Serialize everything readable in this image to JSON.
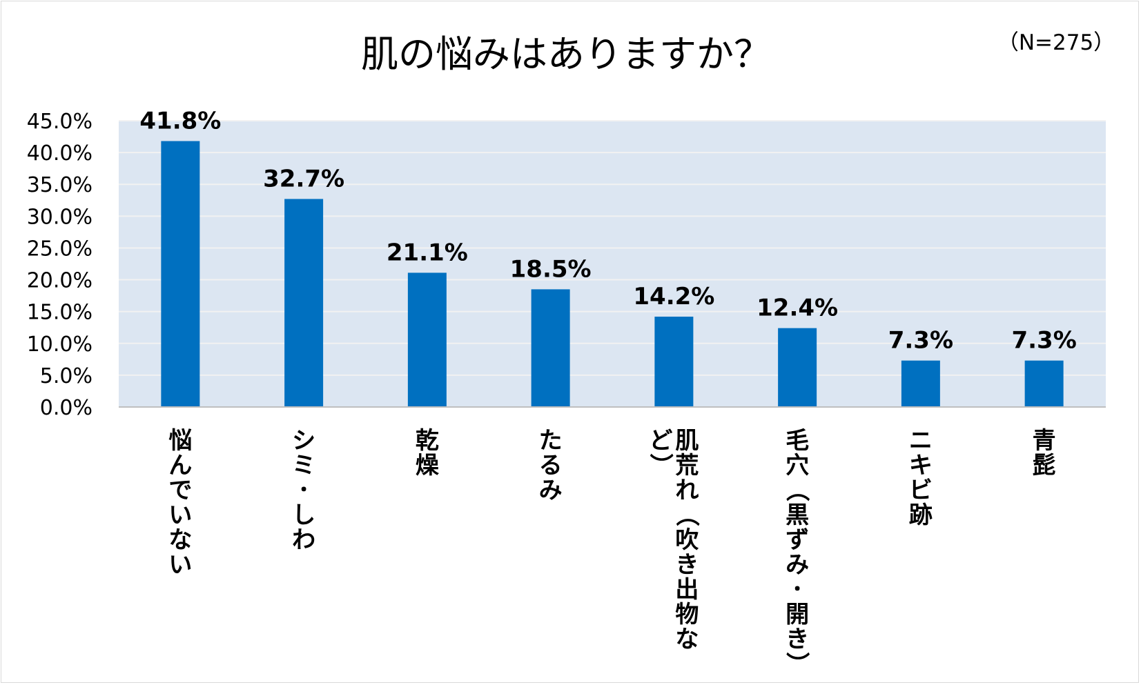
{
  "chart_data": {
    "type": "bar",
    "title": "肌の悩みはありますか？",
    "note": "（N=275）",
    "xlabel": "",
    "ylabel": "",
    "ylim": [
      0,
      45
    ],
    "ytick_step": 5,
    "ytick_format": "percent_1dp",
    "grid": true,
    "legend": "none",
    "categories": [
      "悩んでいない",
      "シミ･しわ",
      "乾燥",
      "たるみ",
      "肌荒れ（吹き出物など）",
      "毛穴（黒ずみ･開き）",
      "ニキビ跡",
      "青髭"
    ],
    "category_lines": [
      [
        "悩んでいない"
      ],
      [
        "シミ･しわ"
      ],
      [
        "乾燥"
      ],
      [
        "たるみ"
      ],
      [
        "肌荒れ（吹き出物な",
        "ど）"
      ],
      [
        "毛穴（黒ずみ･開き）"
      ],
      [
        "ニキビ跡"
      ],
      [
        "青髭"
      ]
    ],
    "values": [
      41.8,
      32.7,
      21.1,
      18.5,
      14.2,
      12.4,
      7.3,
      7.3
    ],
    "value_labels": [
      "41.8%",
      "32.7%",
      "21.1%",
      "18.5%",
      "14.2%",
      "12.4%",
      "7.3%",
      "7.3%"
    ],
    "ytick_labels": [
      "0.0%",
      "5.0%",
      "10.0%",
      "15.0%",
      "20.0%",
      "25.0%",
      "30.0%",
      "35.0%",
      "40.0%",
      "45.0%"
    ]
  },
  "colors": {
    "bar": "#0070c0",
    "plot_bg": "#dce6f2",
    "grid": "#f2f2f2",
    "axis": "#bfbfbf",
    "text": "#000000"
  }
}
